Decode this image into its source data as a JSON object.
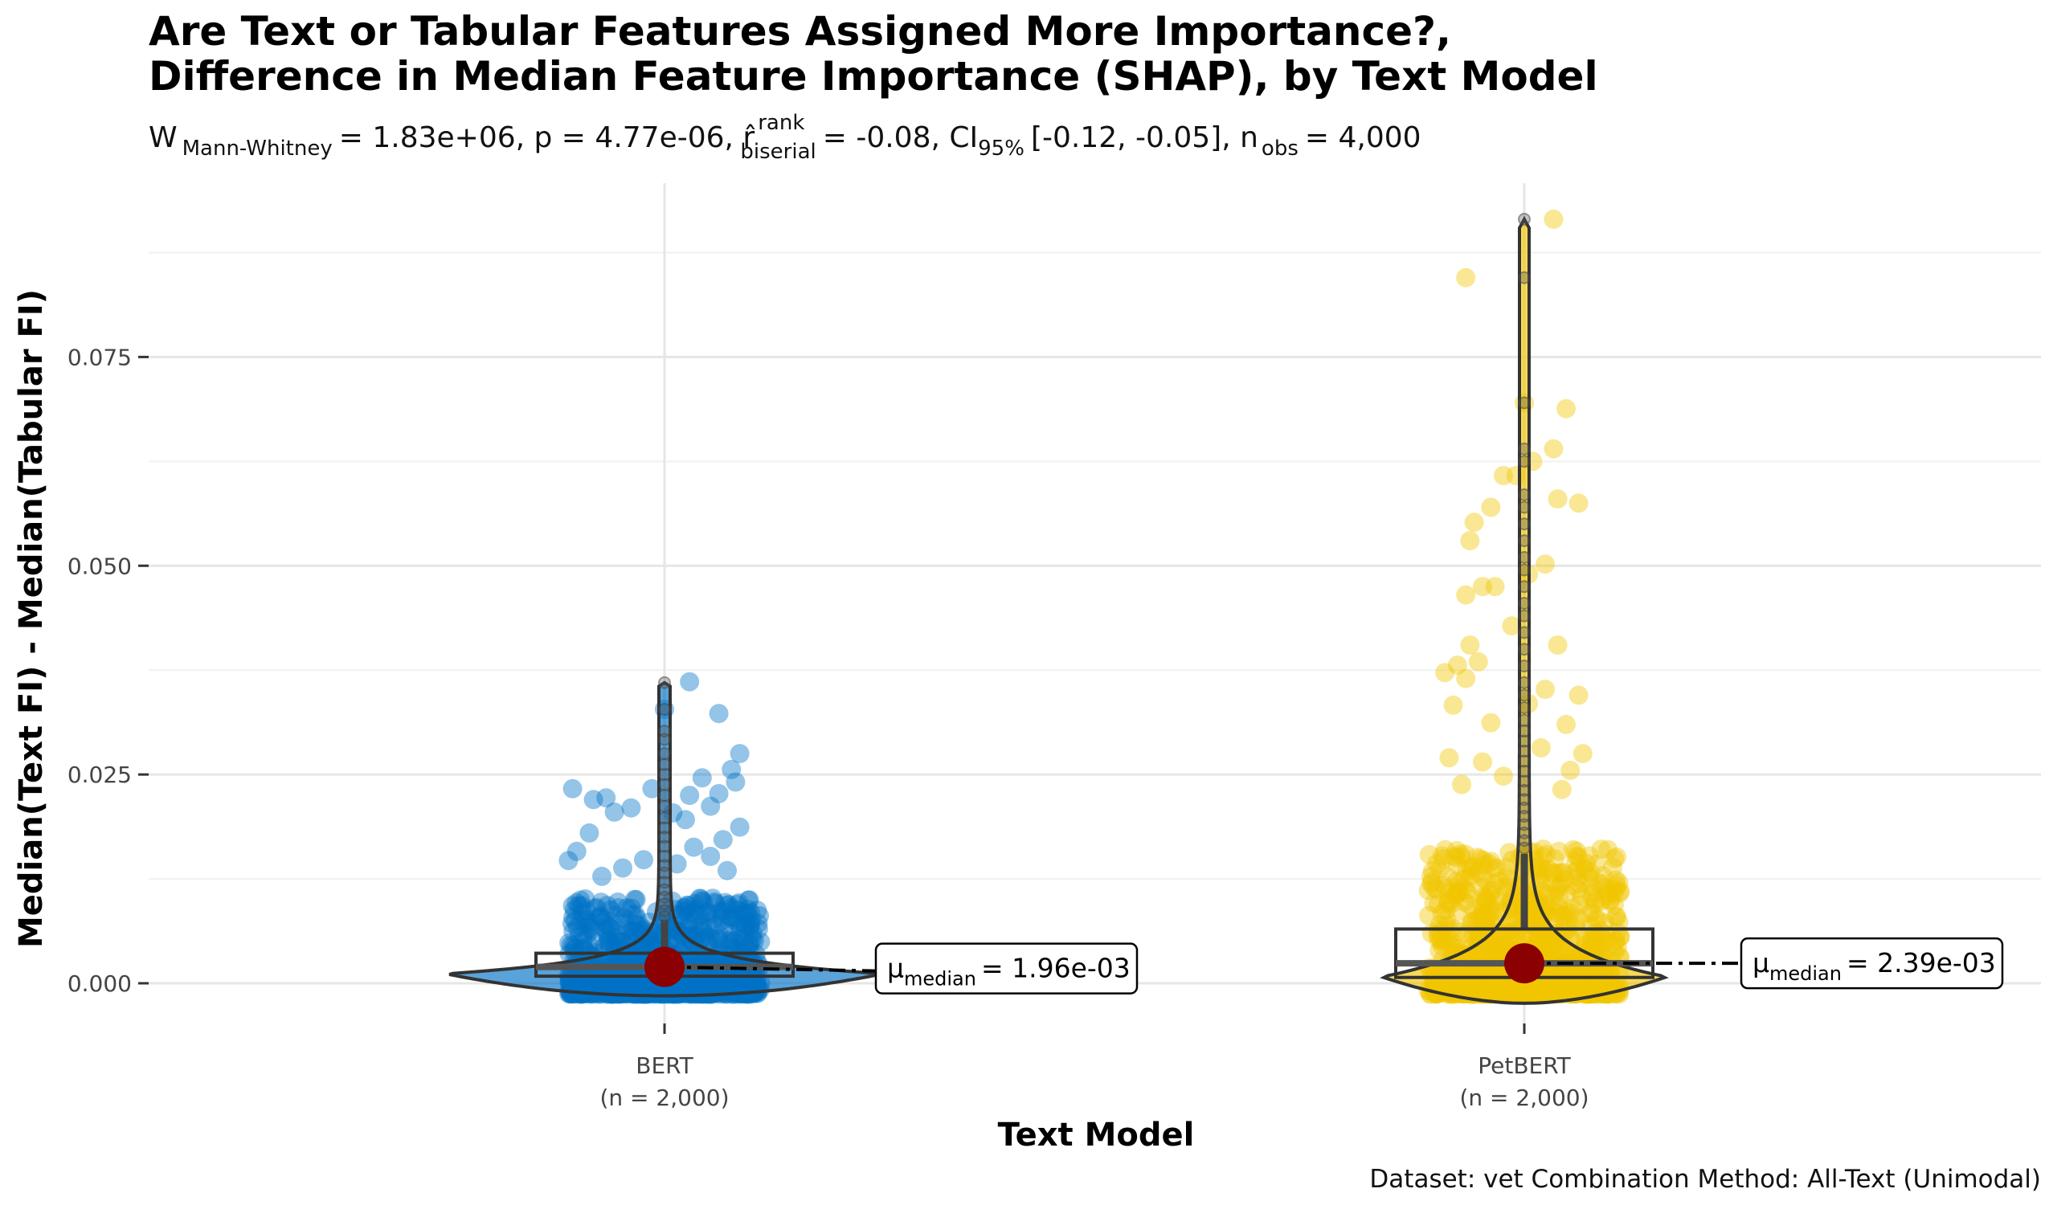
{
  "chart_data": {
    "type": "violin",
    "title": "Are Text or Tabular Features Assigned More Importance?,",
    "title_line2": "Difference in Median Feature Importance (SHAP), by Text Model",
    "subtitle": {
      "w_name": "Mann-Whitney",
      "w_value": "1.83e+06",
      "p": "4.77e-06",
      "r_sup": "rank",
      "r_sub": "biserial",
      "r_value": "-0.08",
      "ci_level": "95%",
      "ci": "[-0.12, -0.05]",
      "n_sub": "obs",
      "n_obs": "4,000"
    },
    "xlabel": "Text Model",
    "ylabel": "Median(Text FI) - Median(Tabular FI)",
    "ylim": [
      -0.004,
      0.094
    ],
    "yticks": [
      0.0,
      0.025,
      0.05,
      0.075
    ],
    "ytick_labels": [
      "0.000",
      "0.025",
      "0.050",
      "0.075"
    ],
    "grid": true,
    "categories": [
      "BERT",
      "PetBERT"
    ],
    "category_counts": [
      "(n = 2,000)",
      "(n = 2,000)"
    ],
    "colors": {
      "BERT": "#0072C6",
      "PetBERT": "#F1C500",
      "median_point": "#8B0000"
    },
    "series": [
      {
        "category": "BERT",
        "n": 2000,
        "median": 0.00196,
        "median_label": "1.96e-03",
        "box": {
          "q1": 0.00085,
          "q3": 0.0036,
          "whisker_high": 0.0076
        },
        "max": 0.036,
        "outliers": [
          0.036,
          0.0328,
          0.0302,
          0.0292,
          0.0275,
          0.0262,
          0.025,
          0.0238,
          0.0225,
          0.0212,
          0.0198,
          0.0186,
          0.0175,
          0.0164,
          0.0152,
          0.0141,
          0.0132,
          0.0121,
          0.0112,
          0.0103,
          0.0095,
          0.0087,
          0.008
        ],
        "highlight_points": [
          {
            "x": -0.22,
            "y": 0.0233
          },
          {
            "x": -0.17,
            "y": 0.022
          },
          {
            "x": -0.14,
            "y": 0.0222
          },
          {
            "x": -0.12,
            "y": 0.0205
          },
          {
            "x": -0.08,
            "y": 0.021
          },
          {
            "x": -0.18,
            "y": 0.018
          },
          {
            "x": -0.21,
            "y": 0.0158
          },
          {
            "x": -0.23,
            "y": 0.0147
          },
          {
            "x": -0.1,
            "y": 0.0138
          },
          {
            "x": -0.03,
            "y": 0.0233
          },
          {
            "x": 0.0,
            "y": 0.0328
          },
          {
            "x": 0.06,
            "y": 0.0361
          },
          {
            "x": 0.13,
            "y": 0.0323
          },
          {
            "x": 0.18,
            "y": 0.0275
          },
          {
            "x": 0.16,
            "y": 0.0256
          },
          {
            "x": 0.17,
            "y": 0.0241
          },
          {
            "x": 0.13,
            "y": 0.0227
          },
          {
            "x": 0.11,
            "y": 0.0212
          },
          {
            "x": 0.06,
            "y": 0.0225
          },
          {
            "x": 0.09,
            "y": 0.0246
          },
          {
            "x": 0.18,
            "y": 0.0187
          },
          {
            "x": 0.14,
            "y": 0.0172
          },
          {
            "x": 0.07,
            "y": 0.0163
          },
          {
            "x": 0.11,
            "y": 0.0152
          },
          {
            "x": 0.03,
            "y": 0.0143
          },
          {
            "x": -0.05,
            "y": 0.0148
          },
          {
            "x": 0.15,
            "y": 0.0135
          },
          {
            "x": -0.15,
            "y": 0.0128
          },
          {
            "x": 0.05,
            "y": 0.0196
          },
          {
            "x": 0.02,
            "y": 0.0204
          }
        ]
      },
      {
        "category": "PetBERT",
        "n": 2000,
        "median": 0.00239,
        "median_label": "2.39e-03",
        "box": {
          "q1": 0.0007,
          "q3": 0.0065,
          "whisker_high": 0.0155
        },
        "max": 0.0915,
        "outliers": [
          0.0915,
          0.0845,
          0.0695,
          0.064,
          0.0625,
          0.0585,
          0.057,
          0.055,
          0.053,
          0.051,
          0.0495,
          0.0475,
          0.0455,
          0.044,
          0.042,
          0.04,
          0.038,
          0.036,
          0.0345,
          0.033,
          0.0315,
          0.0302,
          0.029,
          0.0278,
          0.0266,
          0.0254,
          0.0242,
          0.0231,
          0.022,
          0.021,
          0.02,
          0.019,
          0.018,
          0.0171,
          0.0162
        ],
        "highlight_points": [
          {
            "x": 0.07,
            "y": 0.0915
          },
          {
            "x": -0.14,
            "y": 0.0845
          },
          {
            "x": 0.0,
            "y": 0.0695
          },
          {
            "x": 0.1,
            "y": 0.0688
          },
          {
            "x": 0.07,
            "y": 0.064
          },
          {
            "x": 0.02,
            "y": 0.0625
          },
          {
            "x": -0.02,
            "y": 0.0608
          },
          {
            "x": -0.05,
            "y": 0.0608
          },
          {
            "x": 0.08,
            "y": 0.058
          },
          {
            "x": 0.13,
            "y": 0.0575
          },
          {
            "x": -0.08,
            "y": 0.057
          },
          {
            "x": -0.12,
            "y": 0.0552
          },
          {
            "x": -0.13,
            "y": 0.053
          },
          {
            "x": 0.05,
            "y": 0.0502
          },
          {
            "x": 0.01,
            "y": 0.049
          },
          {
            "x": -0.1,
            "y": 0.0475
          },
          {
            "x": -0.07,
            "y": 0.0475
          },
          {
            "x": -0.14,
            "y": 0.0465
          },
          {
            "x": -0.03,
            "y": 0.0428
          },
          {
            "x": 0.08,
            "y": 0.0405
          },
          {
            "x": -0.13,
            "y": 0.0405
          },
          {
            "x": -0.11,
            "y": 0.0385
          },
          {
            "x": -0.16,
            "y": 0.0381
          },
          {
            "x": -0.19,
            "y": 0.0372
          },
          {
            "x": -0.14,
            "y": 0.0365
          },
          {
            "x": 0.13,
            "y": 0.0345
          },
          {
            "x": 0.05,
            "y": 0.0352
          },
          {
            "x": 0.01,
            "y": 0.0335
          },
          {
            "x": -0.17,
            "y": 0.0333
          },
          {
            "x": 0.1,
            "y": 0.031
          },
          {
            "x": -0.08,
            "y": 0.0312
          },
          {
            "x": 0.14,
            "y": 0.0275
          },
          {
            "x": 0.04,
            "y": 0.0282
          },
          {
            "x": -0.1,
            "y": 0.0265
          },
          {
            "x": -0.18,
            "y": 0.027
          },
          {
            "x": 0.11,
            "y": 0.0255
          },
          {
            "x": -0.05,
            "y": 0.0248
          },
          {
            "x": 0.09,
            "y": 0.0232
          },
          {
            "x": -0.15,
            "y": 0.0238
          }
        ]
      }
    ]
  },
  "caption": "Dataset: vet Combination Method:  All-Text (Unimodal)"
}
